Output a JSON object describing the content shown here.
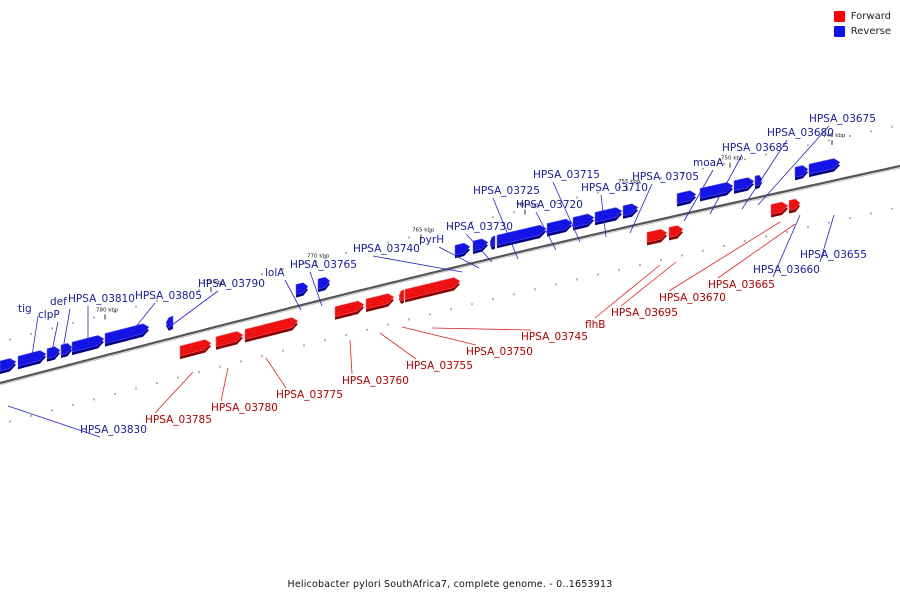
{
  "caption": "Helicobacter pylori SouthAfrica7, complete genome. - 0..1653913",
  "legend": [
    {
      "label": "Forward",
      "color": "#ff0000"
    },
    {
      "label": "Reverse",
      "color": "#1111ee"
    }
  ],
  "colors": {
    "forward": "#ee1111",
    "reverse": "#1414e6",
    "forward_label": "#b00000",
    "reverse_label": "#1a1aa0",
    "axis": "#777777"
  },
  "axis_ticks": [
    {
      "label": "780 kbp",
      "kbp": 780
    },
    {
      "label": "775 kbp",
      "kbp": 775
    },
    {
      "label": "770 kbp",
      "kbp": 770
    },
    {
      "label": "765 kbp",
      "kbp": 765
    },
    {
      "label": "760 kbp",
      "kbp": 760
    },
    {
      "label": "755 kbp",
      "kbp": 755
    },
    {
      "label": "750 kbp",
      "kbp": 750
    },
    {
      "label": "745 kbp",
      "kbp": 745
    }
  ],
  "genes": [
    {
      "name": "HPSA_03830",
      "strand": "reverse"
    },
    {
      "name": "tig",
      "strand": "reverse"
    },
    {
      "name": "clpP",
      "strand": "reverse"
    },
    {
      "name": "def",
      "strand": "reverse"
    },
    {
      "name": "HPSA_03810",
      "strand": "reverse"
    },
    {
      "name": "HPSA_03805",
      "strand": "reverse"
    },
    {
      "name": "HPSA_03790",
      "strand": "reverse"
    },
    {
      "name": "lolA",
      "strand": "reverse"
    },
    {
      "name": "HPSA_03765",
      "strand": "reverse"
    },
    {
      "name": "HPSA_03740",
      "strand": "reverse"
    },
    {
      "name": "pyrH",
      "strand": "reverse"
    },
    {
      "name": "HPSA_03730",
      "strand": "reverse"
    },
    {
      "name": "HPSA_03725",
      "strand": "reverse"
    },
    {
      "name": "HPSA_03720",
      "strand": "reverse"
    },
    {
      "name": "HPSA_03715",
      "strand": "reverse"
    },
    {
      "name": "HPSA_03710",
      "strand": "reverse"
    },
    {
      "name": "HPSA_03705",
      "strand": "reverse"
    },
    {
      "name": "moaA",
      "strand": "reverse"
    },
    {
      "name": "HPSA_03685",
      "strand": "reverse"
    },
    {
      "name": "HPSA_03680",
      "strand": "reverse"
    },
    {
      "name": "HPSA_03675",
      "strand": "reverse"
    },
    {
      "name": "HPSA_03660",
      "strand": "reverse"
    },
    {
      "name": "HPSA_03655",
      "strand": "reverse"
    },
    {
      "name": "HPSA_03785",
      "strand": "forward"
    },
    {
      "name": "HPSA_03780",
      "strand": "forward"
    },
    {
      "name": "HPSA_03775",
      "strand": "forward"
    },
    {
      "name": "HPSA_03760",
      "strand": "forward"
    },
    {
      "name": "HPSA_03755",
      "strand": "forward"
    },
    {
      "name": "HPSA_03750",
      "strand": "forward"
    },
    {
      "name": "HPSA_03745",
      "strand": "forward"
    },
    {
      "name": "flhB",
      "strand": "forward"
    },
    {
      "name": "HPSA_03695",
      "strand": "forward"
    },
    {
      "name": "HPSA_03670",
      "strand": "forward"
    },
    {
      "name": "HPSA_03665",
      "strand": "forward"
    }
  ]
}
